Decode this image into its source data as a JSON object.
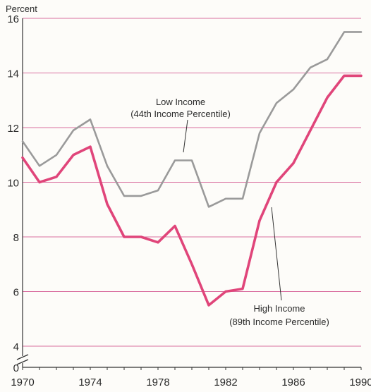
{
  "chart_data": {
    "type": "line",
    "ylabel": "Percent",
    "ylim": [
      4,
      16
    ],
    "y_axis_break": true,
    "yticks": [
      0,
      4,
      6,
      8,
      10,
      12,
      14,
      16
    ],
    "ytick_labels": [
      "0",
      "4",
      "6",
      "8",
      "10",
      "12",
      "14",
      "16"
    ],
    "xlim": [
      1970,
      1990
    ],
    "xticks": [
      1970,
      1974,
      1978,
      1982,
      1986,
      1990
    ],
    "xtick_labels": [
      "1970",
      "1974",
      "1978",
      "1982",
      "1986",
      "1990"
    ],
    "grid": "horizontal",
    "series": [
      {
        "name": "Low Income (44th Income Percentile)",
        "label_lines": [
          "Low Income",
          "(44th Income Percentile)"
        ],
        "color": "#9a9a9a",
        "x": [
          1970,
          1971,
          1972,
          1973,
          1974,
          1975,
          1976,
          1977,
          1978,
          1979,
          1980,
          1981,
          1982,
          1983,
          1984,
          1985,
          1986,
          1987,
          1988,
          1989,
          1990
        ],
        "values": [
          11.5,
          10.6,
          11.0,
          11.9,
          12.3,
          10.6,
          9.5,
          9.5,
          9.7,
          10.8,
          10.8,
          9.1,
          9.4,
          9.4,
          11.8,
          12.9,
          13.4,
          14.2,
          14.5,
          15.5,
          15.5
        ]
      },
      {
        "name": "High Income (89th Income Percentile)",
        "label_lines": [
          "High Income",
          "(89th Income Percentile)"
        ],
        "color": "#e0457a",
        "x": [
          1970,
          1971,
          1972,
          1973,
          1974,
          1975,
          1976,
          1977,
          1978,
          1979,
          1980,
          1981,
          1982,
          1983,
          1984,
          1985,
          1986,
          1987,
          1988,
          1989,
          1990
        ],
        "values": [
          10.9,
          10.0,
          10.2,
          11.0,
          11.3,
          9.2,
          8.0,
          8.0,
          7.8,
          8.4,
          7.0,
          5.5,
          6.0,
          6.1,
          8.6,
          10.0,
          10.7,
          11.9,
          13.1,
          13.9,
          13.9
        ]
      }
    ]
  },
  "colors": {
    "gridline": "#d96fa0",
    "axis": "#333333"
  }
}
